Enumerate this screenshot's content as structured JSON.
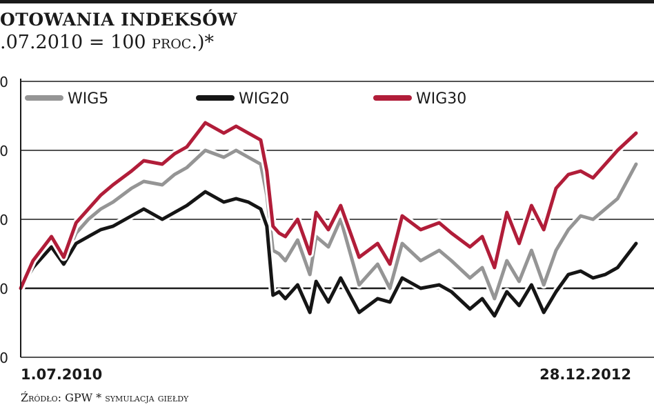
{
  "header": {
    "title": "OTOWANIA INDEKSÓW",
    "subtitle_main": ".07.2010 = 100 ",
    "subtitle_unit": "proc.",
    "subtitle_tail": ")*"
  },
  "footer": {
    "source": "Źródło: GPW * symulacja giełdy"
  },
  "chart_data": {
    "type": "line",
    "x_start_label": "1.07.2010",
    "x_end_label": "28.12.2012",
    "yticks": [
      "0",
      "0",
      "0",
      "0",
      "0"
    ],
    "ylim": [
      80,
      160
    ],
    "grid": true,
    "legend_position": "top",
    "series": [
      {
        "name": "WIG5",
        "color": "#959595",
        "x": [
          0,
          0.02,
          0.05,
          0.07,
          0.09,
          0.11,
          0.13,
          0.15,
          0.18,
          0.2,
          0.23,
          0.25,
          0.27,
          0.3,
          0.33,
          0.35,
          0.37,
          0.39,
          0.4,
          0.41,
          0.42,
          0.43,
          0.45,
          0.47,
          0.48,
          0.5,
          0.52,
          0.55,
          0.58,
          0.6,
          0.62,
          0.65,
          0.68,
          0.7,
          0.73,
          0.75,
          0.77,
          0.79,
          0.81,
          0.83,
          0.85,
          0.87,
          0.89,
          0.91,
          0.93,
          0.95,
          0.97,
          1
        ],
        "values": [
          100,
          107,
          113,
          108,
          116,
          120,
          123,
          125,
          129,
          131,
          130,
          133,
          135,
          140,
          138,
          140,
          138,
          136,
          127,
          111,
          110,
          108,
          114,
          104,
          115,
          112,
          120,
          101,
          107,
          100,
          113,
          108,
          111,
          108,
          103,
          106,
          97,
          108,
          102,
          111,
          101,
          111,
          117,
          121,
          120,
          123,
          126,
          136
        ]
      },
      {
        "name": "WIG20",
        "color": "#151515",
        "x": [
          0,
          0.02,
          0.05,
          0.07,
          0.09,
          0.11,
          0.13,
          0.15,
          0.18,
          0.2,
          0.23,
          0.25,
          0.27,
          0.3,
          0.33,
          0.35,
          0.37,
          0.39,
          0.4,
          0.41,
          0.42,
          0.43,
          0.45,
          0.47,
          0.48,
          0.5,
          0.52,
          0.55,
          0.58,
          0.6,
          0.62,
          0.65,
          0.68,
          0.7,
          0.73,
          0.75,
          0.77,
          0.79,
          0.81,
          0.83,
          0.85,
          0.87,
          0.89,
          0.91,
          0.93,
          0.95,
          0.97,
          1
        ],
        "values": [
          100,
          106,
          112,
          107,
          113,
          115,
          117,
          118,
          121,
          123,
          120,
          122,
          124,
          128,
          125,
          126,
          125,
          123,
          118,
          98,
          99,
          97,
          101,
          93,
          102,
          96,
          103,
          93,
          97,
          96,
          103,
          100,
          101,
          99,
          94,
          97,
          92,
          99,
          95,
          101,
          93,
          99,
          104,
          105,
          103,
          104,
          106,
          113
        ]
      },
      {
        "name": "WIG30",
        "color": "#b11d39",
        "x": [
          0,
          0.02,
          0.05,
          0.07,
          0.09,
          0.11,
          0.13,
          0.15,
          0.18,
          0.2,
          0.23,
          0.25,
          0.27,
          0.3,
          0.33,
          0.35,
          0.37,
          0.39,
          0.4,
          0.41,
          0.42,
          0.43,
          0.45,
          0.47,
          0.48,
          0.5,
          0.52,
          0.55,
          0.58,
          0.6,
          0.62,
          0.65,
          0.68,
          0.7,
          0.73,
          0.75,
          0.77,
          0.79,
          0.81,
          0.83,
          0.85,
          0.87,
          0.89,
          0.91,
          0.93,
          0.95,
          0.97,
          1
        ],
        "values": [
          100,
          108,
          115,
          109,
          119,
          123,
          127,
          130,
          134,
          137,
          136,
          139,
          141,
          148,
          145,
          147,
          145,
          143,
          134,
          118,
          116,
          115,
          120,
          110,
          122,
          117,
          124,
          109,
          113,
          107,
          121,
          117,
          119,
          116,
          112,
          115,
          106,
          122,
          113,
          124,
          117,
          129,
          133,
          134,
          132,
          136,
          140,
          145
        ]
      }
    ]
  }
}
